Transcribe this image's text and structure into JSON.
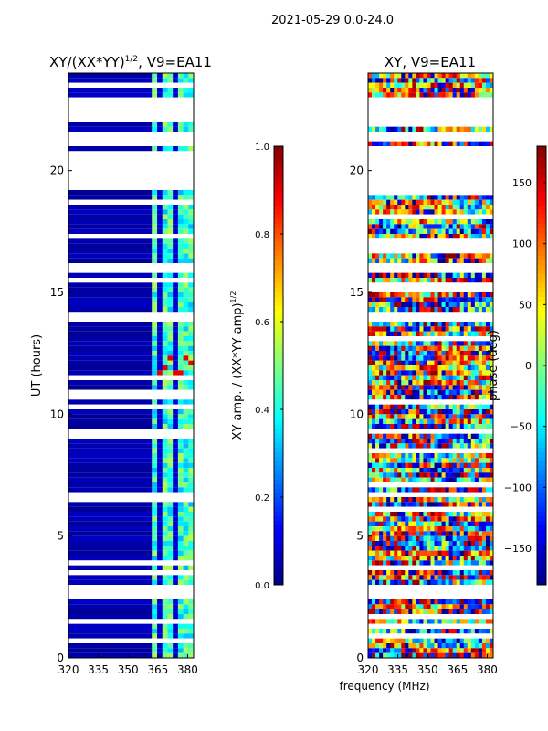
{
  "suptitle": "2021-05-29 0.0-24.0",
  "xlabel_shared": "frequency (MHz)",
  "colors": {
    "jet": [
      "#000080",
      "#0000ff",
      "#0080ff",
      "#00ffff",
      "#80ff80",
      "#ffff00",
      "#ff8000",
      "#ff0000",
      "#800000"
    ],
    "background_stripe": "#ffffff"
  },
  "chart_data": [
    {
      "type": "heatmap",
      "title_main": "XY/(XX*YY)",
      "title_exp": "1/2",
      "title_tail": ", V9=EA11",
      "ylabel": "UT (hours)",
      "xlabel": "",
      "xlim": [
        320,
        383
      ],
      "ylim": [
        0,
        24
      ],
      "xticks": [
        "320",
        "335",
        "350",
        "365",
        "380"
      ],
      "xtick_values": [
        320,
        335,
        350,
        365,
        380
      ],
      "yticks": [
        "0",
        "5",
        "10",
        "15",
        "20"
      ],
      "ytick_values": [
        0,
        5,
        10,
        15,
        20
      ],
      "colorbar": {
        "label_main": "XY amp. / (XX*YY amp)",
        "label_exp": "1/2",
        "range": [
          0.0,
          1.0
        ],
        "ticks": [
          "0.0",
          "0.2",
          "0.4",
          "0.6",
          "0.8",
          "1.0"
        ],
        "tick_values": [
          0.0,
          0.2,
          0.4,
          0.6,
          0.8,
          1.0
        ]
      },
      "flagged_hours": [
        [
          2.5,
          2.9
        ],
        [
          6.6,
          6.8
        ],
        [
          13.9,
          14.1
        ],
        [
          15.9,
          16.1
        ],
        [
          19.2,
          20.7
        ],
        [
          21.3,
          21.6
        ],
        [
          22.1,
          22.9
        ]
      ]
    },
    {
      "type": "heatmap",
      "title_main": "XY, V9=EA11",
      "ylabel": "",
      "xlabel": "frequency (MHz)",
      "xlim": [
        320,
        383
      ],
      "ylim": [
        0,
        24
      ],
      "xticks": [
        "320",
        "335",
        "350",
        "365",
        "380"
      ],
      "xtick_values": [
        320,
        335,
        350,
        365,
        380
      ],
      "yticks": [
        "0",
        "5",
        "10",
        "15",
        "20"
      ],
      "ytick_values": [
        0,
        5,
        10,
        15,
        20
      ],
      "colorbar": {
        "label_main": "phase (deg)",
        "range": [
          -180,
          180
        ],
        "ticks": [
          "−150",
          "−100",
          "−50",
          "0",
          "50",
          "100",
          "150"
        ],
        "tick_values": [
          -150,
          -100,
          -50,
          0,
          50,
          100,
          150
        ]
      },
      "flagged_hours": [
        [
          2.5,
          2.9
        ],
        [
          6.6,
          6.8
        ],
        [
          13.9,
          14.1
        ],
        [
          15.9,
          16.1
        ],
        [
          19.2,
          20.7
        ],
        [
          21.3,
          21.6
        ],
        [
          22.1,
          22.9
        ]
      ]
    }
  ]
}
